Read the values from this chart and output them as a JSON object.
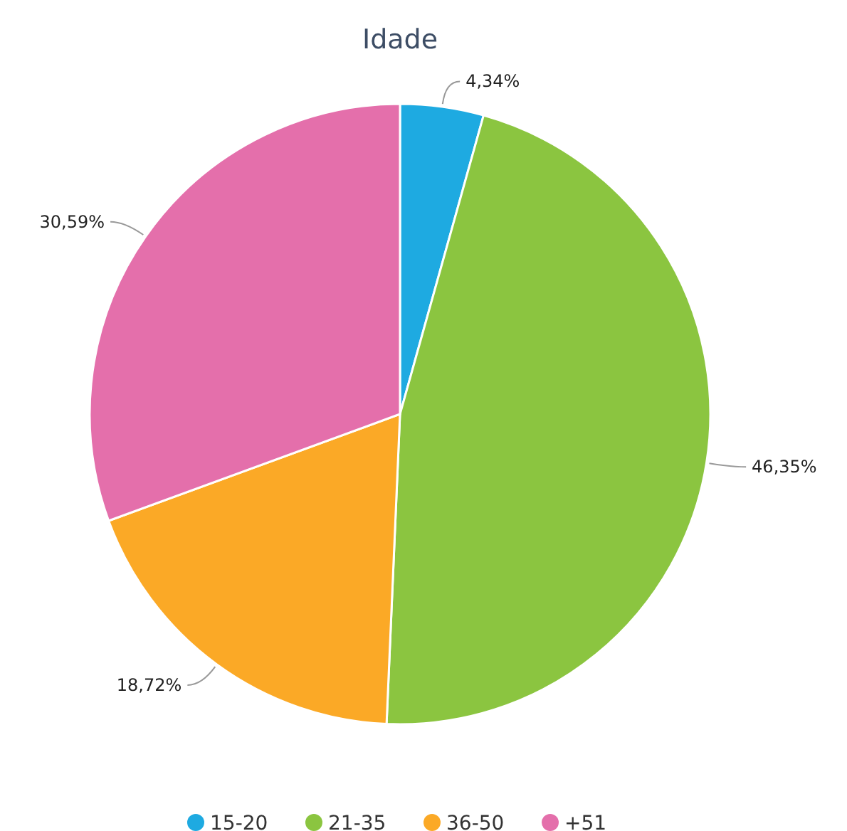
{
  "chart_data": {
    "type": "pie",
    "title": "Idade",
    "categories": [
      "15-20",
      "21-35",
      "36-50",
      "+51"
    ],
    "values": [
      4.34,
      46.35,
      18.72,
      30.59
    ],
    "colors": [
      "#1eaae1",
      "#8bc540",
      "#fba926",
      "#e46fab"
    ],
    "value_labels": [
      "4,34%",
      "46,35%",
      "18,72%",
      "30,59%"
    ],
    "legend": "bottom"
  }
}
